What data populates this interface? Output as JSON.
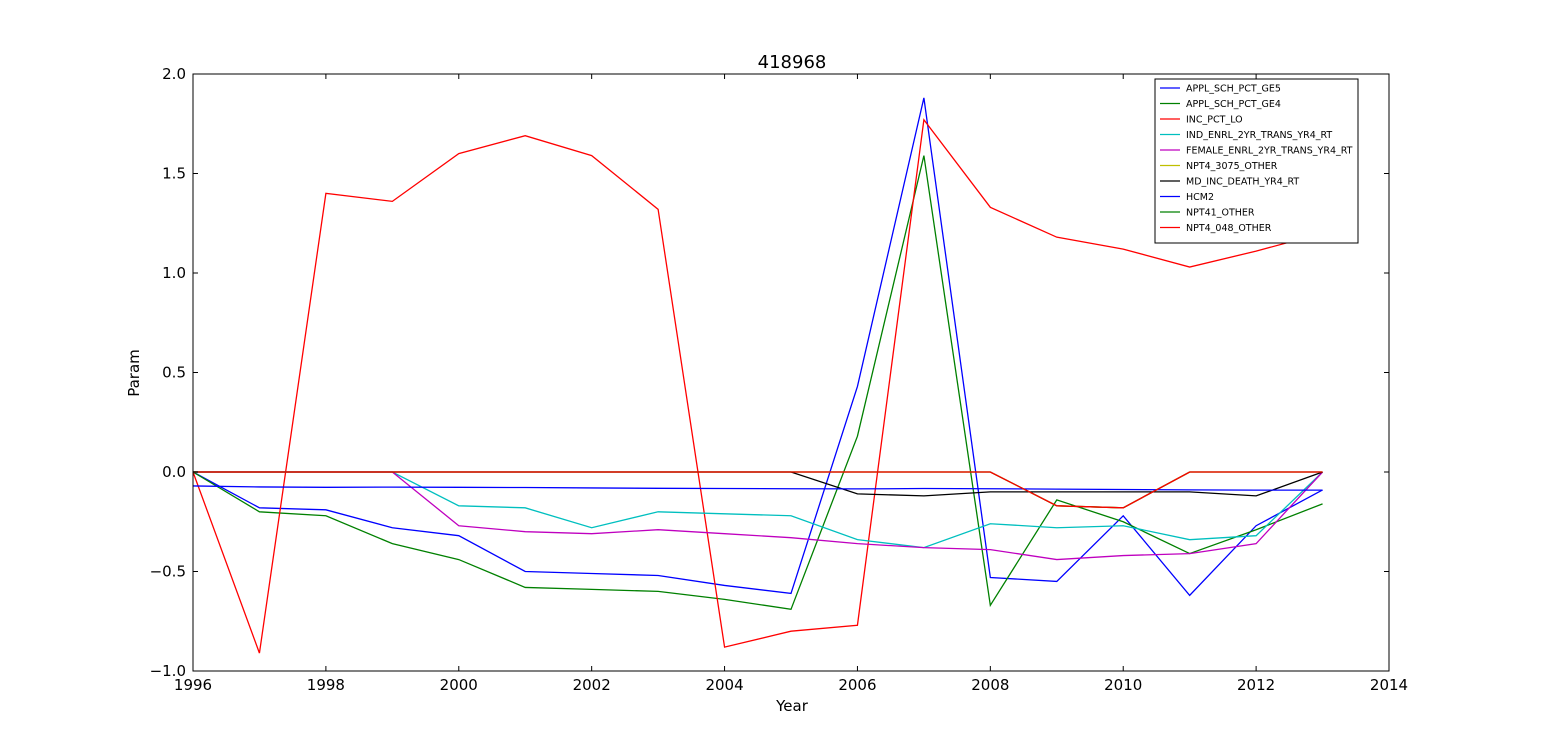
{
  "chart_data": {
    "type": "line",
    "title": "418968",
    "xlabel": "Year",
    "ylabel": "Param",
    "xlim": [
      1996,
      2014
    ],
    "ylim": [
      -1.0,
      2.0
    ],
    "xticks": [
      1996,
      1998,
      2000,
      2002,
      2004,
      2006,
      2008,
      2010,
      2012,
      2014
    ],
    "xtick_labels": [
      "1996",
      "1998",
      "2000",
      "2002",
      "2004",
      "2006",
      "2008",
      "2010",
      "2012",
      "2014"
    ],
    "yticks": [
      -1.0,
      -0.5,
      0.0,
      0.5,
      1.0,
      1.5,
      2.0
    ],
    "ytick_labels": [
      "−1.0",
      "−0.5",
      "0.0",
      "0.5",
      "1.0",
      "1.5",
      "2.0"
    ],
    "grid": false,
    "legend_position": "top-right",
    "x": [
      1996,
      1997,
      1998,
      1999,
      2000,
      2001,
      2002,
      2003,
      2004,
      2005,
      2006,
      2007,
      2008,
      2009,
      2010,
      2011,
      2012,
      2013
    ],
    "series": [
      {
        "name": "APPL_SCH_PCT_GE5",
        "color": "#0000ff",
        "values": [
          0.0,
          -0.18,
          -0.19,
          -0.28,
          -0.32,
          -0.5,
          -0.51,
          -0.52,
          -0.57,
          -0.61,
          0.43,
          1.88,
          -0.53,
          -0.55,
          -0.22,
          -0.62,
          -0.27,
          -0.09
        ]
      },
      {
        "name": "APPL_SCH_PCT_GE4",
        "color": "#008000",
        "values": [
          0.0,
          -0.2,
          -0.22,
          -0.36,
          -0.44,
          -0.58,
          -0.59,
          -0.6,
          -0.64,
          -0.69,
          0.18,
          1.59,
          -0.67,
          -0.14,
          -0.25,
          -0.41,
          -0.29,
          -0.16
        ]
      },
      {
        "name": "INC_PCT_LO",
        "color": "#ff0000",
        "values": [
          0.0,
          -0.91,
          1.4,
          1.36,
          1.6,
          1.69,
          1.59,
          1.32,
          -0.88,
          -0.8,
          -0.77,
          1.77,
          1.33,
          1.18,
          1.12,
          1.03,
          1.11,
          1.2
        ]
      },
      {
        "name": "IND_ENRL_2YR_TRANS_YR4_RT",
        "color": "#00bfbf",
        "values": [
          0.0,
          0.0,
          0.0,
          0.0,
          -0.17,
          -0.18,
          -0.28,
          -0.2,
          -0.21,
          -0.22,
          -0.34,
          -0.38,
          -0.26,
          -0.28,
          -0.27,
          -0.34,
          -0.32,
          0.0
        ]
      },
      {
        "name": "FEMALE_ENRL_2YR_TRANS_YR4_RT",
        "color": "#bf00bf",
        "values": [
          0.0,
          0.0,
          0.0,
          0.0,
          -0.27,
          -0.3,
          -0.31,
          -0.29,
          -0.31,
          -0.33,
          -0.36,
          -0.38,
          -0.39,
          -0.44,
          -0.42,
          -0.41,
          -0.36,
          0.0
        ]
      },
      {
        "name": "NPT4_3075_OTHER",
        "color": "#bfbf00",
        "values": [
          0.0,
          0.0,
          0.0,
          0.0,
          0.0,
          0.0,
          0.0,
          0.0,
          0.0,
          0.0,
          0.0,
          0.0,
          0.0,
          -0.17,
          -0.18,
          0.0,
          0.0,
          0.0
        ]
      },
      {
        "name": "MD_INC_DEATH_YR4_RT",
        "color": "#000000",
        "values": [
          0.0,
          0.0,
          0.0,
          0.0,
          0.0,
          0.0,
          0.0,
          0.0,
          0.0,
          0.0,
          -0.11,
          -0.12,
          -0.1,
          -0.1,
          -0.1,
          -0.1,
          -0.12,
          0.0
        ]
      },
      {
        "name": "HCM2",
        "color": "#0000ff",
        "values": [
          -0.07,
          -0.075,
          -0.077,
          -0.076,
          -0.077,
          -0.078,
          -0.08,
          -0.082,
          -0.083,
          -0.084,
          -0.085,
          -0.083,
          -0.084,
          -0.086,
          -0.088,
          -0.09,
          -0.091,
          -0.091
        ]
      },
      {
        "name": "NPT41_OTHER",
        "color": "#008000",
        "values": [
          0.0,
          0.0,
          0.0,
          0.0,
          0.0,
          0.0,
          0.0,
          0.0,
          0.0,
          0.0,
          0.0,
          0.0,
          0.0,
          -0.17,
          -0.18,
          0.0,
          0.0,
          0.0
        ]
      },
      {
        "name": "NPT4_048_OTHER",
        "color": "#ff0000",
        "values": [
          0.0,
          0.0,
          0.0,
          0.0,
          0.0,
          0.0,
          0.0,
          0.0,
          0.0,
          0.0,
          0.0,
          0.0,
          0.0,
          -0.17,
          -0.18,
          0.0,
          0.0,
          0.0
        ]
      }
    ]
  }
}
